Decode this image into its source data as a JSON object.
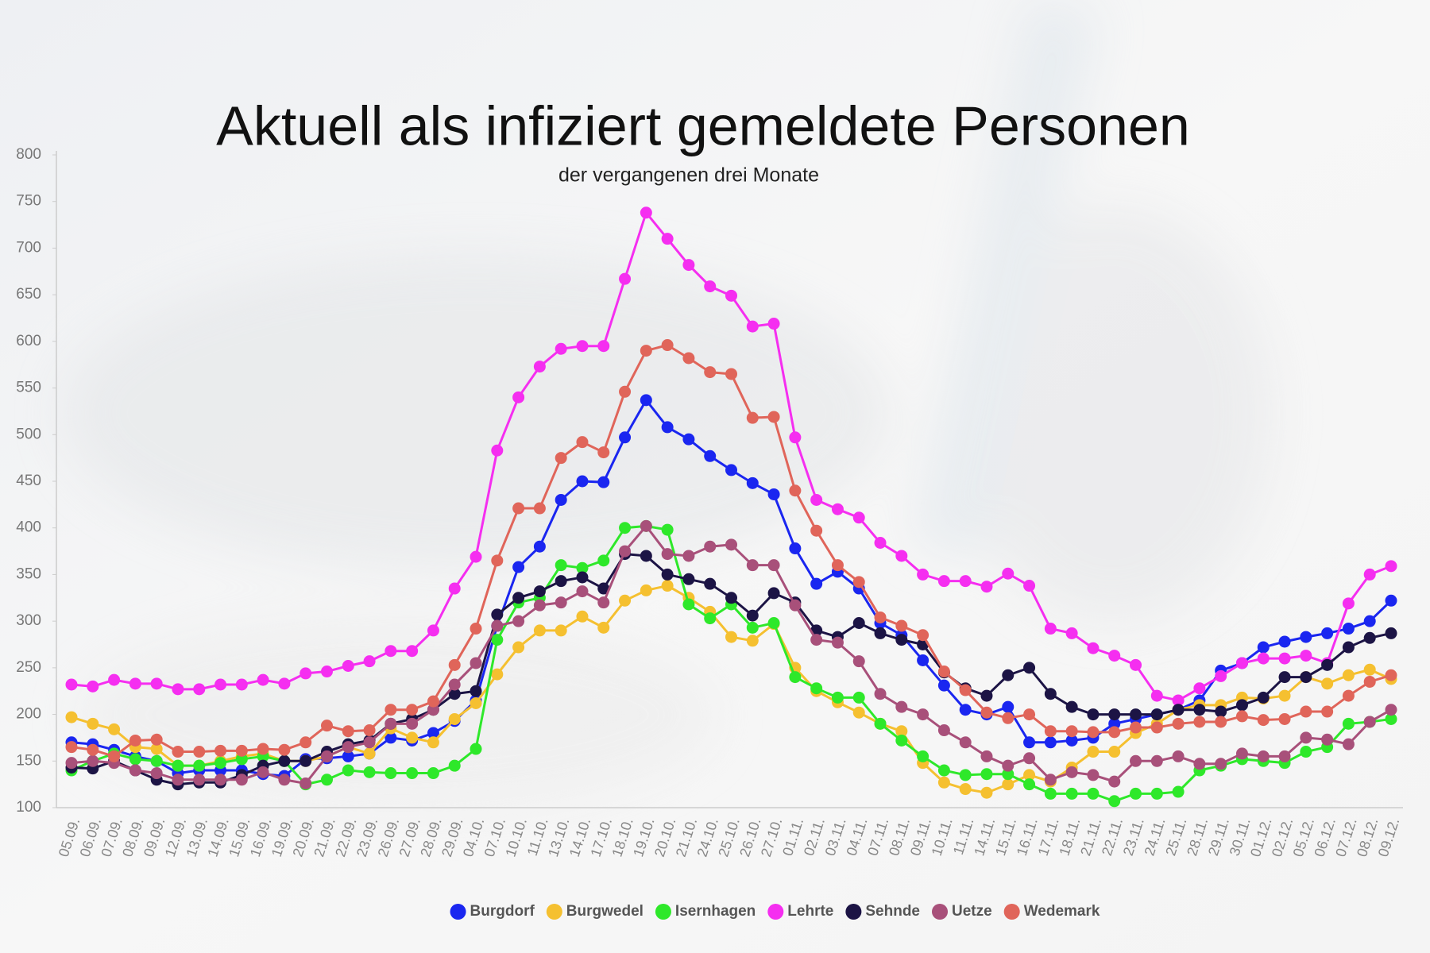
{
  "chart_data": {
    "type": "line",
    "title": "Aktuell als infiziert gemeldete Personen",
    "subtitle": "der vergangenen drei Monate",
    "categories": [
      "05.09.",
      "06.09.",
      "07.09.",
      "08.09.",
      "09.09.",
      "12.09.",
      "13.09.",
      "14.09.",
      "15.09.",
      "16.09.",
      "19.09.",
      "20.09.",
      "21.09.",
      "22.09.",
      "23.09.",
      "26.09.",
      "27.09.",
      "28.09.",
      "29.09.",
      "04.10.",
      "07.10.",
      "10.10.",
      "11.10.",
      "13.10.",
      "14.10.",
      "17.10.",
      "18.10.",
      "19.10.",
      "20.10.",
      "21.10.",
      "24.10.",
      "25.10.",
      "26.10.",
      "27.10.",
      "01.11.",
      "02.11.",
      "03.11.",
      "04.11.",
      "07.11.",
      "08.11.",
      "09.11.",
      "10.11.",
      "11.11.",
      "14.11.",
      "15.11.",
      "16.11.",
      "17.11.",
      "18.11.",
      "21.11.",
      "22.11.",
      "23.11.",
      "24.11.",
      "25.11.",
      "28.11.",
      "29.11.",
      "30.11.",
      "01.12.",
      "02.12.",
      "05.12.",
      "06.12.",
      "07.12.",
      "08.12.",
      "09.12."
    ],
    "ylim": [
      100,
      800
    ],
    "yticks": [
      100,
      150,
      200,
      250,
      300,
      350,
      400,
      450,
      500,
      550,
      600,
      650,
      700,
      750,
      800
    ],
    "grid": false,
    "legend": "bottom",
    "series": [
      {
        "name": "Burgdorf",
        "color": "#1a26f0",
        "values": [
          170,
          168,
          162,
          155,
          150,
          137,
          140,
          140,
          140,
          136,
          134,
          152,
          153,
          155,
          158,
          175,
          172,
          180,
          193,
          215,
          295,
          358,
          380,
          430,
          450,
          449,
          497,
          537,
          508,
          495,
          477,
          462,
          448,
          436,
          378,
          340,
          353,
          335,
          298,
          285,
          258,
          231,
          205,
          200,
          208,
          170,
          170,
          172,
          175,
          190,
          195,
          200,
          205,
          215,
          247,
          255,
          272,
          278,
          283,
          287,
          292,
          300,
          322
        ]
      },
      {
        "name": "Burgwedel",
        "color": "#f5c030",
        "values": [
          197,
          190,
          184,
          165,
          163,
          145,
          145,
          150,
          155,
          158,
          150,
          150,
          155,
          165,
          158,
          185,
          175,
          170,
          195,
          212,
          243,
          272,
          290,
          290,
          305,
          293,
          322,
          333,
          338,
          325,
          310,
          283,
          279,
          297,
          250,
          225,
          213,
          202,
          190,
          182,
          148,
          127,
          120,
          116,
          125,
          135,
          128,
          143,
          160,
          160,
          180,
          190,
          205,
          210,
          210,
          218,
          217,
          220,
          240,
          233,
          242,
          248,
          238
        ]
      },
      {
        "name": "Isernhagen",
        "color": "#2ee82a",
        "values": [
          140,
          150,
          158,
          152,
          150,
          145,
          145,
          148,
          152,
          155,
          150,
          125,
          130,
          140,
          138,
          137,
          137,
          137,
          145,
          163,
          280,
          320,
          325,
          360,
          357,
          365,
          400,
          402,
          398,
          318,
          303,
          318,
          293,
          298,
          240,
          228,
          218,
          218,
          190,
          172,
          155,
          140,
          135,
          136,
          136,
          125,
          115,
          115,
          115,
          107,
          115,
          115,
          117,
          140,
          145,
          152,
          150,
          148,
          160,
          165,
          190,
          192,
          195
        ]
      },
      {
        "name": "Lehrte",
        "color": "#f52ef0",
        "values": [
          232,
          230,
          237,
          233,
          233,
          227,
          227,
          232,
          232,
          237,
          233,
          244,
          246,
          252,
          257,
          268,
          268,
          290,
          335,
          369,
          483,
          540,
          573,
          592,
          595,
          595,
          667,
          738,
          710,
          682,
          659,
          649,
          616,
          619,
          497,
          430,
          420,
          411,
          384,
          370,
          350,
          343,
          343,
          337,
          351,
          338,
          292,
          287,
          271,
          263,
          253,
          220,
          215,
          228,
          241,
          255,
          260,
          260,
          263,
          255,
          319,
          350,
          359
        ]
      },
      {
        "name": "Sehnde",
        "color": "#1c1445",
        "values": [
          143,
          142,
          150,
          140,
          130,
          125,
          127,
          127,
          135,
          145,
          150,
          150,
          160,
          168,
          172,
          190,
          195,
          205,
          222,
          225,
          307,
          325,
          332,
          343,
          347,
          335,
          372,
          370,
          350,
          345,
          340,
          325,
          306,
          330,
          320,
          290,
          283,
          298,
          287,
          280,
          275,
          245,
          228,
          220,
          242,
          250,
          222,
          208,
          200,
          200,
          200,
          200,
          205,
          205,
          203,
          210,
          218,
          240,
          240,
          253,
          272,
          282,
          287
        ]
      },
      {
        "name": "Uetze",
        "color": "#a8507a",
        "values": [
          148,
          150,
          148,
          140,
          137,
          130,
          130,
          130,
          130,
          138,
          130,
          126,
          155,
          165,
          170,
          190,
          190,
          205,
          232,
          255,
          295,
          300,
          317,
          320,
          332,
          320,
          375,
          402,
          372,
          370,
          380,
          382,
          360,
          360,
          317,
          280,
          277,
          257,
          222,
          208,
          200,
          183,
          170,
          155,
          145,
          153,
          130,
          138,
          135,
          128,
          150,
          150,
          155,
          147,
          147,
          158,
          155,
          155,
          175,
          173,
          168,
          192,
          205
        ]
      },
      {
        "name": "Wedemark",
        "color": "#e0655a",
        "values": [
          165,
          162,
          155,
          172,
          173,
          160,
          160,
          161,
          161,
          163,
          162,
          170,
          188,
          182,
          183,
          205,
          205,
          214,
          253,
          292,
          365,
          421,
          421,
          475,
          492,
          481,
          546,
          590,
          596,
          582,
          567,
          565,
          518,
          519,
          440,
          397,
          360,
          342,
          304,
          295,
          285,
          246,
          226,
          202,
          196,
          200,
          182,
          182,
          181,
          181,
          186,
          186,
          190,
          192,
          192,
          198,
          194,
          195,
          203,
          203,
          220,
          235,
          242
        ]
      }
    ]
  }
}
